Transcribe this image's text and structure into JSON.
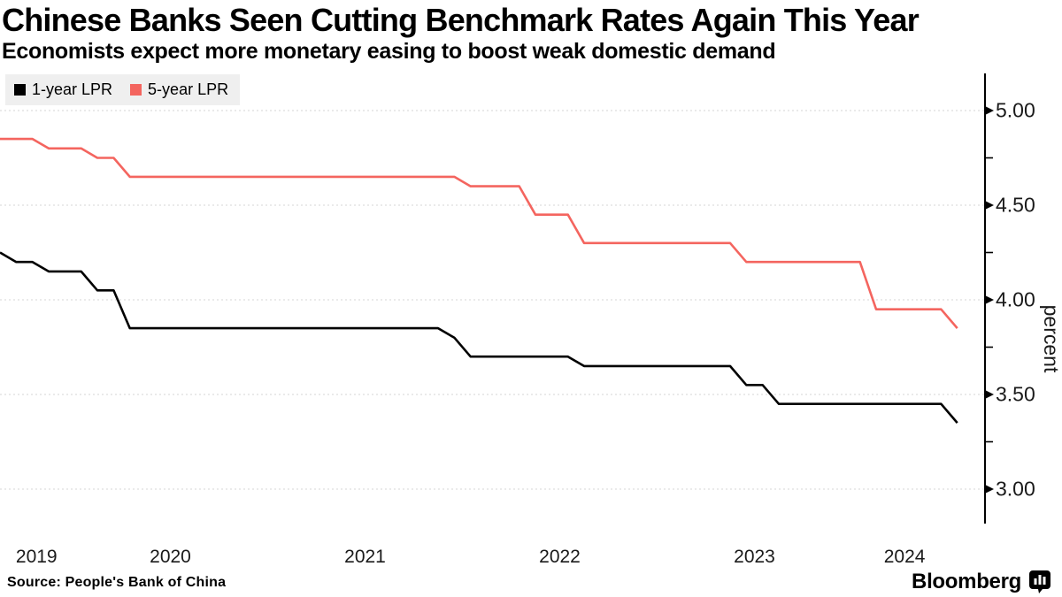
{
  "header": {
    "title": "Chinese Banks Seen Cutting Benchmark Rates Again This Year",
    "subtitle": "Economists expect more monetary easing to boost weak domestic demand"
  },
  "legend": {
    "items": [
      {
        "label": "1-year LPR",
        "color": "#000000"
      },
      {
        "label": "5-year LPR",
        "color": "#f4655f"
      }
    ],
    "background": "#efefef"
  },
  "chart_data": {
    "type": "line",
    "title": "Chinese Banks Seen Cutting Benchmark Rates Again This Year",
    "subtitle": "Economists expect more monetary easing to boost weak domestic demand",
    "xlabel": "",
    "ylabel": "percent",
    "x_tick_labels": [
      "2019",
      "2020",
      "2021",
      "2022",
      "2023",
      "2024"
    ],
    "y_tick_labels": [
      "3.00",
      "3.50",
      "4.00",
      "4.50",
      "5.00"
    ],
    "y_major_ticks": [
      3.0,
      3.5,
      4.0,
      4.5,
      5.0
    ],
    "y_minor_ticks": [
      3.25,
      3.75,
      4.25,
      4.75
    ],
    "ylim": [
      2.8,
      5.2
    ],
    "x_range": [
      "2019-08",
      "2024-07"
    ],
    "grid": "dashed-horizontal",
    "legend_position": "top-left",
    "series": [
      {
        "name": "1-year LPR",
        "color": "#000000",
        "points": [
          {
            "date": "2019-08",
            "value": 4.25
          },
          {
            "date": "2019-09",
            "value": 4.2
          },
          {
            "date": "2019-11",
            "value": 4.15
          },
          {
            "date": "2020-02",
            "value": 4.05
          },
          {
            "date": "2020-04",
            "value": 3.85
          },
          {
            "date": "2021-12",
            "value": 3.8
          },
          {
            "date": "2022-01",
            "value": 3.7
          },
          {
            "date": "2022-08",
            "value": 3.65
          },
          {
            "date": "2023-06",
            "value": 3.55
          },
          {
            "date": "2023-08",
            "value": 3.45
          },
          {
            "date": "2024-07",
            "value": 3.35
          }
        ]
      },
      {
        "name": "5-year LPR",
        "color": "#f4655f",
        "points": [
          {
            "date": "2019-08",
            "value": 4.85
          },
          {
            "date": "2019-11",
            "value": 4.8
          },
          {
            "date": "2020-02",
            "value": 4.75
          },
          {
            "date": "2020-04",
            "value": 4.65
          },
          {
            "date": "2022-01",
            "value": 4.6
          },
          {
            "date": "2022-05",
            "value": 4.45
          },
          {
            "date": "2022-08",
            "value": 4.3
          },
          {
            "date": "2023-06",
            "value": 4.2
          },
          {
            "date": "2024-02",
            "value": 3.95
          },
          {
            "date": "2024-07",
            "value": 3.85
          }
        ]
      }
    ],
    "colors": {
      "grid": "#d4d4d4",
      "axis": "#000000"
    }
  },
  "footer": {
    "source": "Source: People's Bank of China",
    "brand": "Bloomberg",
    "brand_icon": "bar-chart-bubble-icon"
  }
}
